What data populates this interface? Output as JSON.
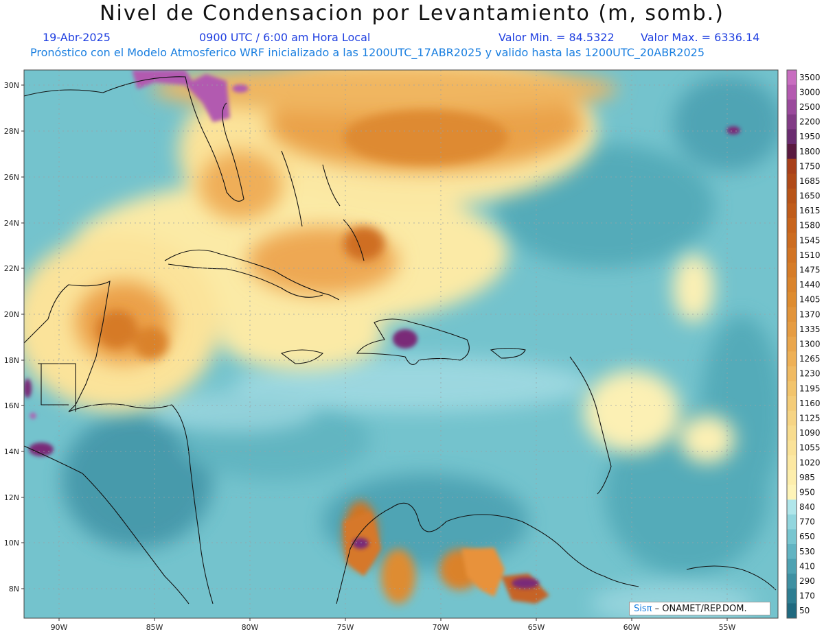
{
  "header": {
    "title": "Nivel de Condensacion por Levantamiento (m, somb.)",
    "date": "19-Abr-2025",
    "time": "0900 UTC / 6:00 am Hora Local",
    "min_label": "Valor Min. = 84.5322",
    "max_label": "Valor Max. = 6336.14",
    "forecast_line": "Pronóstico con el Modelo Atmosferico WRF inicializado a las 1200UTC_17ABR2025 y valido hasta las  1200UTC_20ABR2025"
  },
  "map": {
    "lat_labels": [
      "30N",
      "28N",
      "26N",
      "24N",
      "22N",
      "20N",
      "18N",
      "16N",
      "14N",
      "12N",
      "10N",
      "8N"
    ],
    "lon_labels": [
      "90W",
      "85W",
      "80W",
      "75W",
      "70W",
      "65W",
      "60W",
      "55W"
    ]
  },
  "colorbar": {
    "levels": [
      "3500",
      "3000",
      "2500",
      "2200",
      "1950",
      "1800",
      "1750",
      "1685",
      "1650",
      "1615",
      "1580",
      "1545",
      "1510",
      "1475",
      "1440",
      "1405",
      "1370",
      "1335",
      "1300",
      "1265",
      "1230",
      "1195",
      "1160",
      "1125",
      "1090",
      "1055",
      "1020",
      "985",
      "950",
      "840",
      "770",
      "650",
      "530",
      "410",
      "290",
      "170",
      "50"
    ],
    "colors": [
      "#c86ec0",
      "#b45ab0",
      "#9a4a9c",
      "#823c86",
      "#6a2c70",
      "#5a1a40",
      "#a8401a",
      "#b04a18",
      "#b85418",
      "#c05c1a",
      "#c8641c",
      "#cc6c20",
      "#d27424",
      "#d67c28",
      "#da842c",
      "#de8c30",
      "#e2943a",
      "#e69c42",
      "#eaa64c",
      "#eeb056",
      "#f0ba62",
      "#f2c46c",
      "#f4cc78",
      "#f6d484",
      "#f8dc8e",
      "#fae298",
      "#fce8a2",
      "#fdeeac",
      "#fef4b8",
      "#b0e6ea",
      "#92d6de",
      "#78c6d0",
      "#62b4c2",
      "#4ea2b2",
      "#3e90a2",
      "#2e7e92",
      "#206a80"
    ]
  },
  "credit": {
    "logo": "Sisπ",
    "text": " – ONAMET/REP.DOM."
  }
}
